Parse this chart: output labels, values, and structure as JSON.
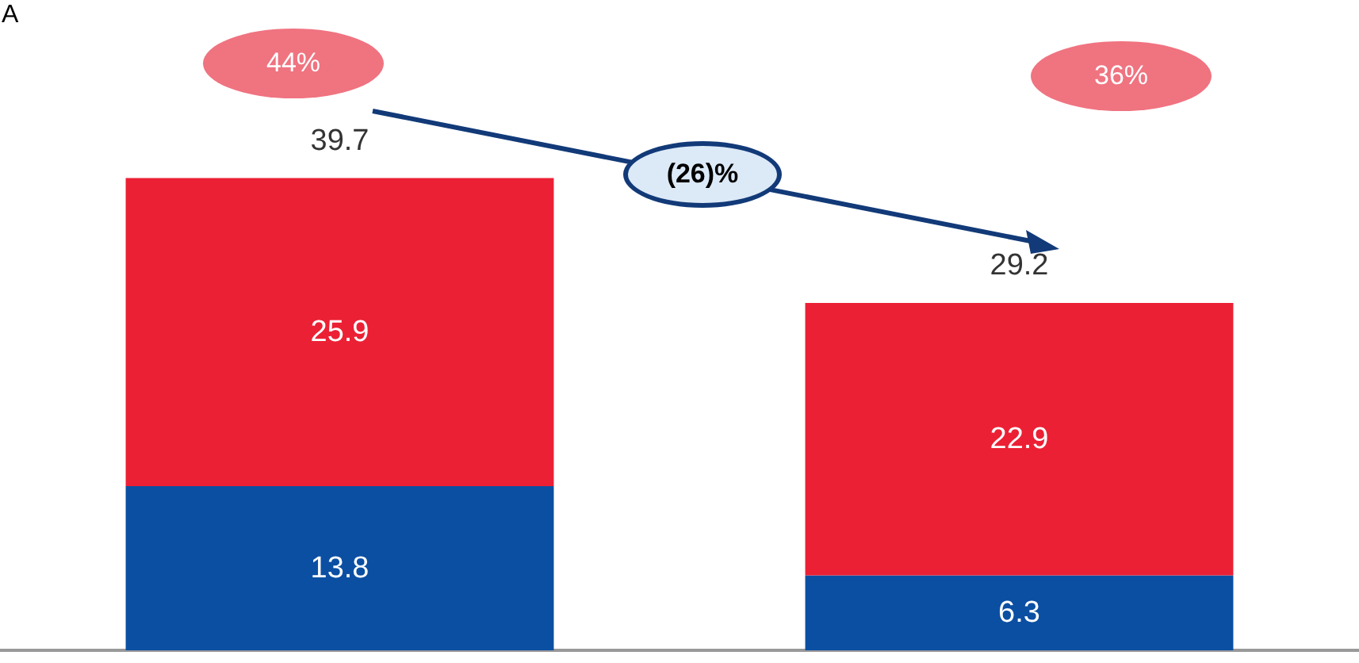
{
  "chart_data": {
    "type": "bar",
    "stacked": true,
    "categories": [
      null,
      null
    ],
    "series": [
      {
        "color": "#0b4fa3",
        "values": [
          13.8,
          6.3
        ]
      },
      {
        "color": "#ec2034",
        "values": [
          25.9,
          22.9
        ]
      }
    ],
    "data_labels": true,
    "totals": [
      "39.7",
      "29.2"
    ],
    "annotations": [
      "A",
      "44%",
      "36%",
      "(26)%"
    ]
  }
}
